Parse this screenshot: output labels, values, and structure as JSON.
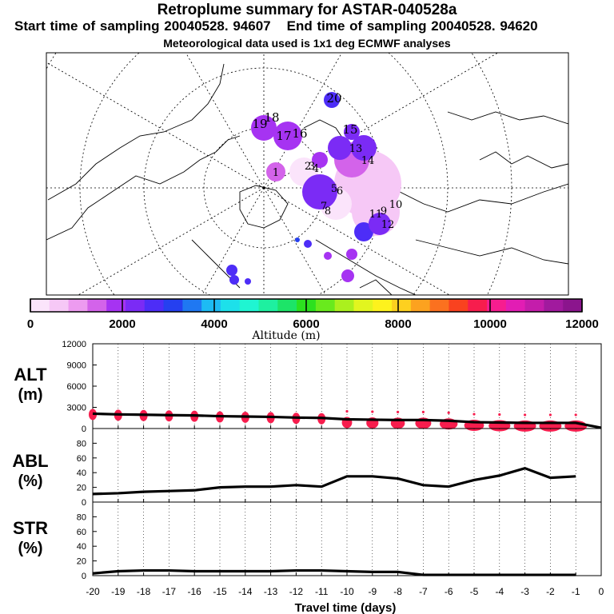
{
  "header": {
    "title": "Retroplume summary for ASTAR-040528a",
    "start_time": "Start time of sampling 20040528. 94607",
    "end_time": "End time of sampling 20040528. 94620",
    "met_data": "Meteorological data used is 1x1 deg ECMWF analyses"
  },
  "colorbar": {
    "label": "Altitude (m)",
    "tick_labels": [
      "0",
      "2000",
      "4000",
      "6000",
      "8000",
      "10000",
      "12000"
    ],
    "colors": [
      "#fbe4fb",
      "#f6c8f6",
      "#ed9bf0",
      "#d363ea",
      "#a633f2",
      "#7b2bf5",
      "#4d2df7",
      "#2540f0",
      "#1f78f2",
      "#1dbbf4",
      "#1de0ea",
      "#1ff5d2",
      "#1ef0a0",
      "#1de468",
      "#2ce11f",
      "#69ea1d",
      "#abf01e",
      "#e2f51f",
      "#fdf21d",
      "#fdd01f",
      "#fca21f",
      "#fb711f",
      "#f9421f",
      "#f71d4d",
      "#f71d8f",
      "#e21db4",
      "#c41dab",
      "#a11a9e",
      "#8b158d"
    ]
  },
  "map": {
    "labels": [
      "20",
      "19",
      "18",
      "17",
      "16",
      "15",
      "14",
      "13",
      "12",
      "11",
      "10",
      "9",
      "8",
      "7",
      "6",
      "5",
      "4",
      "3",
      "2",
      "1"
    ]
  },
  "chart_data": [
    {
      "type": "scatter",
      "name": "ALT",
      "ylabel": "ALT (m)",
      "y_tick_labels": [
        "0",
        "3000",
        "6000",
        "9000",
        "12000"
      ],
      "ylim": [
        0,
        12000
      ],
      "x": [
        -20,
        -19,
        -18,
        -17,
        -16,
        -15,
        -14,
        -13,
        -12,
        -11,
        -10,
        -9,
        -8,
        -7,
        -6,
        -5,
        -4,
        -3,
        -2,
        -1,
        0
      ],
      "mean_altitude": [
        2100,
        2000,
        1950,
        1900,
        1850,
        1750,
        1700,
        1650,
        1550,
        1500,
        1300,
        1250,
        1200,
        1200,
        1100,
        900,
        850,
        800,
        800,
        800,
        100
      ]
    },
    {
      "type": "line",
      "name": "ABL",
      "ylabel": "ABL (%)",
      "y_tick_labels": [
        "0",
        "20",
        "40",
        "60",
        "80"
      ],
      "ylim": [
        0,
        100
      ],
      "x": [
        -20,
        -19,
        -18,
        -17,
        -16,
        -15,
        -14,
        -13,
        -12,
        -11,
        -10,
        -9,
        -8,
        -7,
        -6,
        -5,
        -4,
        -3,
        -2,
        -1
      ],
      "values": [
        11,
        12,
        14,
        15,
        16,
        20,
        21,
        21,
        23,
        21,
        35,
        35,
        32,
        23,
        21,
        30,
        36,
        46,
        33,
        35
      ]
    },
    {
      "type": "line",
      "name": "STR",
      "ylabel": "STR (%)",
      "y_tick_labels": [
        "0",
        "20",
        "40",
        "60",
        "80"
      ],
      "ylim": [
        0,
        100
      ],
      "x": [
        -20,
        -19,
        -18,
        -17,
        -16,
        -15,
        -14,
        -13,
        -12,
        -11,
        -10,
        -9,
        -8,
        -7,
        -6,
        -5,
        -4,
        -3,
        -2,
        -1
      ],
      "values": [
        3,
        6,
        7,
        7,
        6,
        6,
        6,
        6,
        7,
        7,
        6,
        5,
        5,
        1,
        1,
        1,
        1,
        1,
        1,
        1
      ]
    }
  ],
  "x_axis": {
    "label": "Travel time (days)",
    "tick_labels": [
      "-20",
      "-19",
      "-18",
      "-17",
      "-16",
      "-15",
      "-14",
      "-13",
      "-12",
      "-11",
      "-10",
      "-9",
      "-8",
      "-7",
      "-6",
      "-5",
      "-4",
      "-3",
      "-2",
      "-1",
      "0"
    ]
  },
  "panel_labels": {
    "alt_top": "ALT",
    "alt_bottom": "(m)",
    "abl_top": "ABL",
    "abl_bottom": "(%)",
    "str_top": "STR",
    "str_bottom": "(%)"
  }
}
